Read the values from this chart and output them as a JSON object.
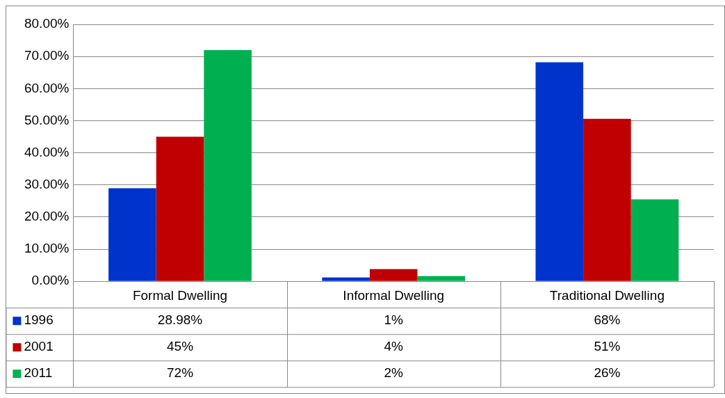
{
  "chart_data": {
    "type": "bar",
    "categories": [
      "Formal Dwelling",
      "Informal Dwelling",
      "Traditional Dwelling"
    ],
    "series": [
      {
        "name": "1996",
        "color": "#0033cc",
        "values": [
          28.98,
          1.2,
          68.2
        ],
        "value_labels": [
          "28.98%",
          "1%",
          "68%"
        ]
      },
      {
        "name": "2001",
        "color": "#c00000",
        "values": [
          45,
          3.8,
          50.6
        ],
        "value_labels": [
          "45%",
          "4%",
          "51%"
        ]
      },
      {
        "name": "2011",
        "color": "#00b050",
        "values": [
          72,
          1.6,
          25.5
        ],
        "value_labels": [
          "72%",
          "2%",
          "26%"
        ]
      }
    ],
    "ylim": [
      0,
      80
    ],
    "yticks": [
      {
        "value": 0,
        "label": "0.00%"
      },
      {
        "value": 10,
        "label": "10.00%"
      },
      {
        "value": 20,
        "label": "20.00%"
      },
      {
        "value": 30,
        "label": "30.00%"
      },
      {
        "value": 40,
        "label": "40.00%"
      },
      {
        "value": 50,
        "label": "50.00%"
      },
      {
        "value": 60,
        "label": "60.00%"
      },
      {
        "value": 70,
        "label": "70.00%"
      },
      {
        "value": 80,
        "label": "80.00%"
      }
    ],
    "grid": "y",
    "legend": "bottom"
  }
}
